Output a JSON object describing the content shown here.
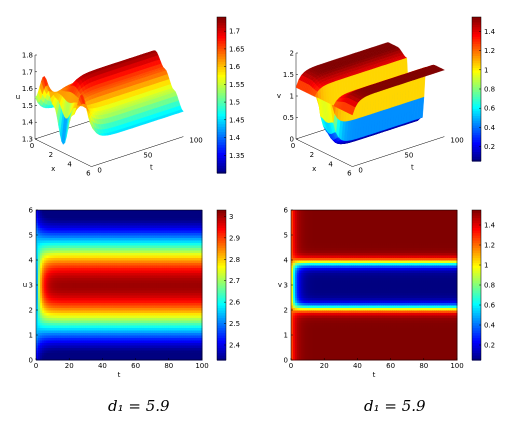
{
  "captions": [
    "d₁ = 5.9",
    "d₁ = 5.9"
  ],
  "chart_data": [
    {
      "type": "surface3d",
      "variable": "u",
      "axes": {
        "x": "x",
        "y": "t",
        "z": "u"
      },
      "x_ticks": [
        "0",
        "2",
        "4",
        "6"
      ],
      "t_ticks": [
        "0",
        "50",
        "100"
      ],
      "z_ticks": [
        "1.3",
        "1.4",
        "1.5",
        "1.6",
        "1.7",
        "1.8"
      ],
      "xlim": [
        0,
        6
      ],
      "tlim": [
        0,
        100
      ],
      "zlim": [
        1.3,
        1.8
      ],
      "initial_condition": {
        "x": [
          0,
          1,
          2,
          3,
          4,
          5,
          6
        ],
        "u": [
          1.55,
          1.7,
          1.55,
          1.35,
          1.55,
          1.7,
          1.55
        ]
      },
      "steady_state": {
        "x": [
          0,
          1,
          2,
          3,
          4,
          5,
          6
        ],
        "u": [
          1.45,
          1.55,
          1.65,
          1.73,
          1.65,
          1.55,
          1.45
        ]
      },
      "colorbar": {
        "ticks": [
          "1.35",
          "1.4",
          "1.45",
          "1.5",
          "1.55",
          "1.6",
          "1.65",
          "1.7"
        ],
        "range": [
          1.3,
          1.74
        ]
      },
      "colormap": "jet"
    },
    {
      "type": "surface3d",
      "variable": "v",
      "axes": {
        "x": "x",
        "y": "t",
        "z": "v"
      },
      "x_ticks": [
        "0",
        "2",
        "4",
        "6"
      ],
      "t_ticks": [
        "0",
        "50",
        "100"
      ],
      "z_ticks": [
        "0",
        "0.5",
        "1",
        "1.5",
        "2"
      ],
      "xlim": [
        0,
        6
      ],
      "tlim": [
        0,
        100
      ],
      "zlim": [
        0,
        2
      ],
      "initial_condition": {
        "x": [
          0,
          1,
          2,
          3,
          4,
          5,
          6
        ],
        "v": [
          1.2,
          1.2,
          1.2,
          1.2,
          1.2,
          1.2,
          1.2
        ]
      },
      "steady_state": {
        "x": [
          0,
          1,
          2,
          2.3,
          3,
          3.7,
          4,
          5,
          6
        ],
        "v": [
          1.55,
          1.55,
          1.4,
          0.2,
          0.05,
          0.2,
          1.4,
          1.55,
          1.55
        ]
      },
      "colorbar": {
        "ticks": [
          "0.2",
          "0.4",
          "0.6",
          "0.8",
          "1",
          "1.2",
          "1.4"
        ],
        "range": [
          0.05,
          1.55
        ]
      },
      "colormap": "jet"
    },
    {
      "type": "heatmap",
      "variable": "u",
      "xlabel": "t",
      "ylabel": "u",
      "x_ticks": [
        "0",
        "20",
        "40",
        "60",
        "80",
        "100"
      ],
      "y_ticks": [
        "0",
        "1",
        "2",
        "3",
        "4",
        "5",
        "6"
      ],
      "xlim": [
        0,
        100
      ],
      "ylim": [
        0,
        6
      ],
      "colorbar": {
        "ticks": [
          "2.4",
          "2.5",
          "2.6",
          "2.7",
          "2.8",
          "2.9",
          "3"
        ],
        "range": [
          2.33,
          3.03
        ]
      },
      "colormap": "jet"
    },
    {
      "type": "heatmap",
      "variable": "v",
      "xlabel": "t",
      "ylabel": "v",
      "x_ticks": [
        "0",
        "20",
        "40",
        "60",
        "80",
        "100"
      ],
      "y_ticks": [
        "0",
        "1",
        "2",
        "3",
        "4",
        "5",
        "6"
      ],
      "xlim": [
        0,
        100
      ],
      "ylim": [
        0,
        6
      ],
      "colorbar": {
        "ticks": [
          "0.2",
          "0.4",
          "0.6",
          "0.8",
          "1",
          "1.2",
          "1.4"
        ],
        "range": [
          0.05,
          1.55
        ]
      },
      "colormap": "jet"
    }
  ]
}
